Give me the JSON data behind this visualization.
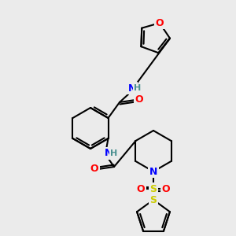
{
  "bg_color": "#ebebeb",
  "atom_colors": {
    "O": "#ff0000",
    "N": "#0000ff",
    "S": "#cccc00",
    "H": "#4a9090",
    "C": "#000000"
  },
  "bond_color": "#000000",
  "bond_width": 1.5,
  "figsize": [
    3.0,
    3.0
  ],
  "dpi": 100
}
